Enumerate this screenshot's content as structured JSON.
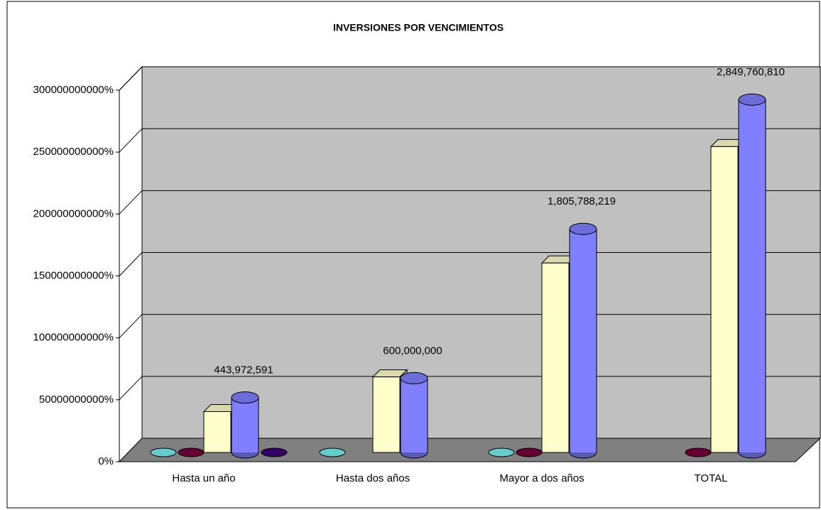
{
  "chart_data": {
    "type": "bar3d",
    "title": "INVERSIONES POR VENCIMIENTOS",
    "categories": [
      "Hasta un año",
      "Hasta dos años",
      "Mayor a dos años",
      "TOTAL"
    ],
    "series": [
      {
        "color": "#66cccc",
        "shape": "box",
        "values": [
          0,
          0,
          0,
          null
        ]
      },
      {
        "color": "#660033",
        "shape": "box",
        "values": [
          0,
          null,
          0,
          0
        ]
      },
      {
        "color": "#ffffcc",
        "shape": "box",
        "values": [
          330000000,
          610000000,
          1530000000,
          2470000000
        ]
      },
      {
        "color": "#8080ff",
        "shape": "cylinder",
        "values": [
          443972591,
          600000000,
          1805788219,
          2849760810
        ],
        "value_labels": [
          "443,972,591",
          "600,000,000",
          "1,805,788,219",
          "2,849,760,810"
        ]
      },
      {
        "color": "#330066",
        "shape": "box",
        "values": [
          0,
          null,
          null,
          null
        ]
      }
    ],
    "ylim": [
      0,
      3000000000
    ],
    "yticks": [
      {
        "value": 0,
        "label": "0%"
      },
      {
        "value": 500000000,
        "label": "50000000000%"
      },
      {
        "value": 1000000000,
        "label": "100000000000%"
      },
      {
        "value": 1500000000,
        "label": "150000000000%"
      },
      {
        "value": 2000000000,
        "label": "200000000000%"
      },
      {
        "value": 2500000000,
        "label": "250000000000%"
      },
      {
        "value": 3000000000,
        "label": "300000000000%"
      }
    ],
    "grid": true
  }
}
